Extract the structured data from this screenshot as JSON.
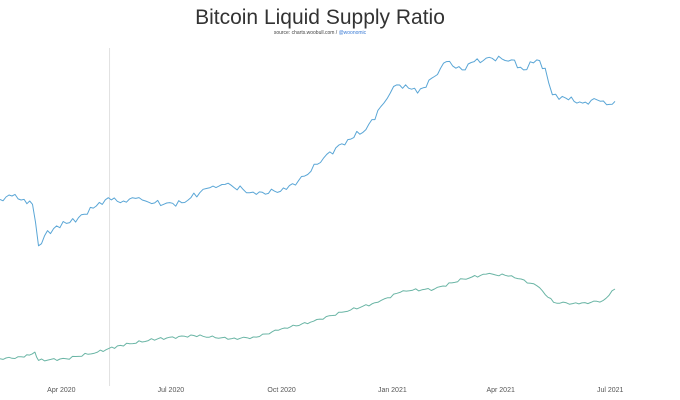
{
  "header": {
    "title": "Bitcoin Liquid Supply Ratio",
    "source_prefix": "source: charts.woobull.com /",
    "source_handle": "@woonomic"
  },
  "chart_data": {
    "type": "line",
    "title": "Bitcoin Liquid Supply Ratio",
    "xlabel": "",
    "ylabel": "",
    "x_range": [
      "2020-02-10",
      "2021-07-05"
    ],
    "y_range": [
      0,
      100
    ],
    "grid": false,
    "legend": "none",
    "x_ticks": [
      {
        "date": "2020-04-01",
        "label": "Apr 2020"
      },
      {
        "date": "2020-07-01",
        "label": "Jul 2020"
      },
      {
        "date": "2020-10-01",
        "label": "Oct 2020"
      },
      {
        "date": "2021-01-01",
        "label": "Jan 2021"
      },
      {
        "date": "2021-04-01",
        "label": "Apr 2021"
      },
      {
        "date": "2021-07-01",
        "label": "Jul 2021"
      }
    ],
    "marker_line": {
      "date": "2020-05-11",
      "color": "#e2e2e2"
    },
    "series": [
      {
        "color": "#5aa6d6",
        "points": [
          [
            "2020-02-10",
            52.0
          ],
          [
            "2020-02-20",
            53.0
          ],
          [
            "2020-03-01",
            52.0
          ],
          [
            "2020-03-08",
            50.5
          ],
          [
            "2020-03-13",
            38.0
          ],
          [
            "2020-03-18",
            41.0
          ],
          [
            "2020-03-28",
            44.0
          ],
          [
            "2020-04-08",
            45.0
          ],
          [
            "2020-04-20",
            47.5
          ],
          [
            "2020-04-30",
            50.0
          ],
          [
            "2020-05-10",
            52.5
          ],
          [
            "2020-05-20",
            51.0
          ],
          [
            "2020-05-30",
            52.5
          ],
          [
            "2020-06-10",
            51.5
          ],
          [
            "2020-06-25",
            50.5
          ],
          [
            "2020-07-10",
            51.0
          ],
          [
            "2020-07-25",
            54.0
          ],
          [
            "2020-08-05",
            56.0
          ],
          [
            "2020-08-15",
            56.5
          ],
          [
            "2020-08-30",
            55.0
          ],
          [
            "2020-09-10",
            53.5
          ],
          [
            "2020-09-25",
            54.5
          ],
          [
            "2020-10-05",
            55.0
          ],
          [
            "2020-10-20",
            59.0
          ],
          [
            "2020-11-05",
            64.5
          ],
          [
            "2020-11-25",
            70.0
          ],
          [
            "2020-12-10",
            73.0
          ],
          [
            "2020-12-25",
            81.0
          ],
          [
            "2021-01-02",
            86.0
          ],
          [
            "2021-01-12",
            86.5
          ],
          [
            "2021-01-22",
            84.0
          ],
          [
            "2021-02-05",
            89.0
          ],
          [
            "2021-02-15",
            93.5
          ],
          [
            "2021-02-28",
            91.0
          ],
          [
            "2021-03-10",
            93.5
          ],
          [
            "2021-03-25",
            94.5
          ],
          [
            "2021-04-10",
            94.0
          ],
          [
            "2021-04-20",
            91.0
          ],
          [
            "2021-05-01",
            94.0
          ],
          [
            "2021-05-08",
            91.5
          ],
          [
            "2021-05-14",
            83.5
          ],
          [
            "2021-05-25",
            82.5
          ],
          [
            "2021-06-08",
            81.0
          ],
          [
            "2021-06-20",
            82.0
          ],
          [
            "2021-06-28",
            80.5
          ],
          [
            "2021-07-05",
            81.5
          ]
        ]
      },
      {
        "color": "#6ab5a5",
        "points": [
          [
            "2020-02-10",
            4.0
          ],
          [
            "2020-03-01",
            4.5
          ],
          [
            "2020-03-10",
            6.0
          ],
          [
            "2020-03-13",
            3.5
          ],
          [
            "2020-04-05",
            4.0
          ],
          [
            "2020-05-01",
            6.0
          ],
          [
            "2020-05-20",
            8.0
          ],
          [
            "2020-06-20",
            10.0
          ],
          [
            "2020-07-20",
            11.0
          ],
          [
            "2020-08-20",
            10.0
          ],
          [
            "2020-09-10",
            10.5
          ],
          [
            "2020-10-01",
            13.0
          ],
          [
            "2020-10-25",
            15.0
          ],
          [
            "2020-11-20",
            18.0
          ],
          [
            "2020-12-20",
            21.0
          ],
          [
            "2021-01-10",
            24.5
          ],
          [
            "2021-02-05",
            25.0
          ],
          [
            "2021-03-01",
            28.0
          ],
          [
            "2021-03-20",
            29.5
          ],
          [
            "2021-04-10",
            29.0
          ],
          [
            "2021-05-01",
            26.0
          ],
          [
            "2021-05-15",
            21.0
          ],
          [
            "2021-06-05",
            20.5
          ],
          [
            "2021-06-25",
            21.5
          ],
          [
            "2021-07-05",
            25.0
          ]
        ]
      }
    ]
  }
}
